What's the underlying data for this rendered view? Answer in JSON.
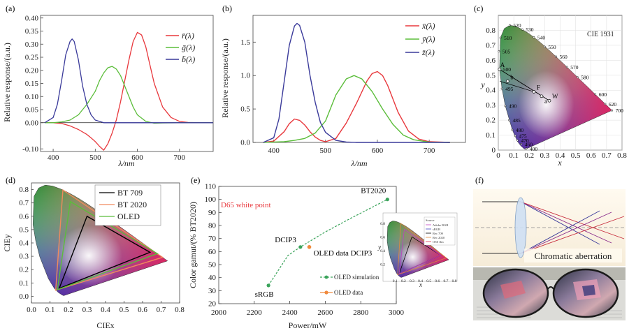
{
  "chart_data": [
    {
      "id": "a",
      "type": "line",
      "panel_label": "(a)",
      "xlabel": "λ/nm",
      "ylabel": "Relative response/(a.u.)",
      "xlim": [
        370,
        780
      ],
      "ylim": [
        -0.11,
        0.41
      ],
      "xticks": [
        "400",
        "500",
        "600",
        "700"
      ],
      "yticks": [
        "-0.10",
        "0.00",
        "0.05",
        "0.10",
        "0.15",
        "0.20",
        "0.25",
        "0.30",
        "0.35",
        "0.40"
      ],
      "legend": [
        "r̄(λ)",
        "ḡ(λ)",
        "b̄(λ)"
      ],
      "series": [
        {
          "name": "r̄(λ)",
          "color": "#e8383d",
          "x": [
            380,
            400,
            420,
            440,
            460,
            480,
            490,
            500,
            510,
            520,
            530,
            540,
            550,
            560,
            570,
            580,
            590,
            600,
            610,
            620,
            630,
            640,
            660,
            680,
            700,
            720,
            750,
            780
          ],
          "y": [
            0.0,
            0.0,
            -0.003,
            -0.012,
            -0.026,
            -0.045,
            -0.058,
            -0.072,
            -0.09,
            -0.105,
            -0.08,
            -0.04,
            0.01,
            0.08,
            0.16,
            0.24,
            0.31,
            0.345,
            0.335,
            0.29,
            0.22,
            0.15,
            0.06,
            0.02,
            0.005,
            0.001,
            0,
            0
          ]
        },
        {
          "name": "ḡ(λ)",
          "color": "#5bbd3a",
          "x": [
            380,
            400,
            420,
            440,
            460,
            480,
            500,
            510,
            520,
            530,
            540,
            550,
            560,
            570,
            580,
            590,
            600,
            620,
            640,
            660,
            700,
            780
          ],
          "y": [
            0,
            0,
            0.003,
            0.01,
            0.03,
            0.07,
            0.12,
            0.16,
            0.19,
            0.21,
            0.215,
            0.205,
            0.18,
            0.14,
            0.1,
            0.06,
            0.03,
            0.005,
            -0.002,
            -0.001,
            0,
            0
          ]
        },
        {
          "name": "b̄(λ)",
          "color": "#3a3a9a",
          "x": [
            380,
            400,
            410,
            420,
            430,
            440,
            445,
            450,
            460,
            470,
            480,
            490,
            500,
            520,
            540,
            560,
            600,
            780
          ],
          "y": [
            0,
            0.02,
            0.07,
            0.16,
            0.26,
            0.31,
            0.32,
            0.31,
            0.24,
            0.14,
            0.07,
            0.03,
            0.01,
            0,
            0,
            0,
            0,
            0
          ]
        }
      ]
    },
    {
      "id": "b",
      "type": "line",
      "panel_label": "(b)",
      "xlabel": "λ/nm",
      "ylabel": "Relative response/(a.u.)",
      "xlim": [
        360,
        770
      ],
      "ylim": [
        0,
        1.9
      ],
      "xticks": [
        "400",
        "500",
        "600",
        "700"
      ],
      "yticks": [
        "0.0",
        "0.5",
        "1.0",
        "1.5"
      ],
      "legend": [
        "x̄(λ)",
        "ȳ(λ)",
        "z̄(λ)"
      ],
      "series": [
        {
          "name": "x̄(λ)",
          "color": "#e8383d",
          "x": [
            380,
            400,
            420,
            430,
            440,
            450,
            460,
            470,
            480,
            490,
            500,
            520,
            540,
            560,
            580,
            590,
            600,
            610,
            620,
            640,
            660,
            680,
            700,
            740
          ],
          "y": [
            0,
            0.02,
            0.16,
            0.28,
            0.35,
            0.33,
            0.26,
            0.16,
            0.08,
            0.03,
            0.01,
            0.06,
            0.29,
            0.59,
            0.92,
            1.03,
            1.06,
            1.0,
            0.85,
            0.45,
            0.17,
            0.05,
            0.01,
            0
          ]
        },
        {
          "name": "ȳ(λ)",
          "color": "#5bbd3a",
          "x": [
            380,
            420,
            440,
            460,
            480,
            500,
            520,
            540,
            555,
            570,
            590,
            610,
            630,
            650,
            670,
            700,
            740
          ],
          "y": [
            0,
            0.01,
            0.03,
            0.06,
            0.14,
            0.32,
            0.71,
            0.95,
            1.0,
            0.95,
            0.76,
            0.5,
            0.27,
            0.11,
            0.04,
            0.004,
            0
          ]
        },
        {
          "name": "z̄(λ)",
          "color": "#3a3a9a",
          "x": [
            380,
            400,
            410,
            420,
            430,
            440,
            445,
            450,
            460,
            470,
            480,
            490,
            500,
            520,
            540,
            560,
            740
          ],
          "y": [
            0,
            0.07,
            0.35,
            0.9,
            1.45,
            1.74,
            1.78,
            1.75,
            1.5,
            1.0,
            0.6,
            0.3,
            0.15,
            0.03,
            0.005,
            0,
            0
          ]
        }
      ]
    },
    {
      "id": "c",
      "type": "scatter",
      "panel_label": "(c)",
      "title": "CIE 1931",
      "xlabel": "x",
      "ylabel": "y",
      "xlim": [
        0,
        0.8
      ],
      "ylim": [
        0,
        0.9
      ],
      "xticks": [
        "0",
        "0.1",
        "0.2",
        "0.3",
        "0.4",
        "0.5",
        "0.6",
        "0.7",
        "0.8"
      ],
      "yticks": [
        "0",
        "0.1",
        "0.2",
        "0.3",
        "0.4",
        "0.5",
        "0.6",
        "0.7",
        "0.8"
      ],
      "locus": [
        [
          0.1741,
          0.005
        ],
        [
          0.1738,
          0.0049
        ],
        [
          0.1666,
          0.0089
        ],
        [
          0.144,
          0.0297
        ],
        [
          0.1241,
          0.0578
        ],
        [
          0.0913,
          0.1327
        ],
        [
          0.0454,
          0.295
        ],
        [
          0.0235,
          0.4127
        ],
        [
          0.0082,
          0.5384
        ],
        [
          0.0139,
          0.7502
        ],
        [
          0.0389,
          0.812
        ],
        [
          0.0743,
          0.8338
        ],
        [
          0.1142,
          0.8262
        ],
        [
          0.1547,
          0.8059
        ],
        [
          0.1929,
          0.7816
        ],
        [
          0.2296,
          0.7543
        ],
        [
          0.2658,
          0.7243
        ],
        [
          0.3016,
          0.6923
        ],
        [
          0.3373,
          0.6589
        ],
        [
          0.3731,
          0.6245
        ],
        [
          0.4087,
          0.5896
        ],
        [
          0.4441,
          0.5547
        ],
        [
          0.4788,
          0.5202
        ],
        [
          0.5125,
          0.4866
        ],
        [
          0.5448,
          0.4544
        ],
        [
          0.5752,
          0.4242
        ],
        [
          0.6029,
          0.3965
        ],
        [
          0.627,
          0.3725
        ],
        [
          0.6482,
          0.3514
        ],
        [
          0.6658,
          0.334
        ],
        [
          0.6915,
          0.3083
        ],
        [
          0.7347,
          0.2653
        ]
      ],
      "wavelength_labels": [
        {
          "label": "400",
          "x": 0.18,
          "y": 0.01
        },
        {
          "label": "460",
          "x": 0.148,
          "y": 0.04
        },
        {
          "label": "470",
          "x": 0.124,
          "y": 0.065
        },
        {
          "label": "475",
          "x": 0.11,
          "y": 0.095
        },
        {
          "label": "480",
          "x": 0.09,
          "y": 0.135
        },
        {
          "label": "485",
          "x": 0.07,
          "y": 0.2
        },
        {
          "label": "490",
          "x": 0.045,
          "y": 0.295
        },
        {
          "label": "495",
          "x": 0.023,
          "y": 0.41
        },
        {
          "label": "500",
          "x": 0.008,
          "y": 0.54
        },
        {
          "label": "505",
          "x": 0.004,
          "y": 0.66
        },
        {
          "label": "510",
          "x": 0.014,
          "y": 0.75
        },
        {
          "label": "520",
          "x": 0.074,
          "y": 0.834
        },
        {
          "label": "530",
          "x": 0.155,
          "y": 0.806
        },
        {
          "label": "540",
          "x": 0.23,
          "y": 0.754
        },
        {
          "label": "550",
          "x": 0.3,
          "y": 0.69
        },
        {
          "label": "560",
          "x": 0.373,
          "y": 0.625
        },
        {
          "label": "570",
          "x": 0.444,
          "y": 0.555
        },
        {
          "label": "580",
          "x": 0.512,
          "y": 0.487
        },
        {
          "label": "600",
          "x": 0.627,
          "y": 0.373
        },
        {
          "label": "620",
          "x": 0.691,
          "y": 0.308
        },
        {
          "label": "700",
          "x": 0.735,
          "y": 0.265
        }
      ],
      "points": [
        {
          "label": "A",
          "x": 0.008,
          "y": 0.54
        },
        {
          "label": "b",
          "x": 0.06,
          "y": 0.46
        },
        {
          "label": "F",
          "x": 0.23,
          "y": 0.39
        },
        {
          "label": "a",
          "x": 0.28,
          "y": 0.36
        },
        {
          "label": "W",
          "x": 0.33,
          "y": 0.33
        }
      ]
    },
    {
      "id": "d",
      "type": "scatter",
      "panel_label": "(d)",
      "xlabel": "CIEx",
      "ylabel": "CIEy",
      "xlim": [
        0,
        0.8
      ],
      "ylim": [
        -0.05,
        0.85
      ],
      "xticks": [
        "0.0",
        "0.1",
        "0.2",
        "0.3",
        "0.4",
        "0.5",
        "0.6",
        "0.7",
        "0.8"
      ],
      "yticks": [
        "0.0",
        "0.1",
        "0.2",
        "0.3",
        "0.4",
        "0.5",
        "0.6",
        "0.7",
        "0.8"
      ],
      "series": [
        {
          "name": "BT 709",
          "color": "#000000",
          "points": [
            [
              0.64,
              0.33
            ],
            [
              0.3,
              0.6
            ],
            [
              0.15,
              0.06
            ]
          ]
        },
        {
          "name": "BT 2020",
          "color": "#f08a5d",
          "points": [
            [
              0.708,
              0.292
            ],
            [
              0.17,
              0.797
            ],
            [
              0.131,
              0.046
            ]
          ]
        },
        {
          "name": "OLED",
          "color": "#5bbd3a",
          "points": [
            [
              0.68,
              0.32
            ],
            [
              0.21,
              0.71
            ],
            [
              0.14,
              0.05
            ]
          ]
        }
      ]
    },
    {
      "id": "e",
      "type": "line",
      "panel_label": "(e)",
      "annotation": "D65 white point",
      "xlabel": "Power/mW",
      "ylabel": "Color gamut/(% BT2020)",
      "xlim": [
        2000,
        3000
      ],
      "ylim": [
        20,
        110
      ],
      "xticks": [
        "2000",
        "2200",
        "2400",
        "2600",
        "2800",
        "3000"
      ],
      "yticks": [
        "20",
        "30",
        "40",
        "50",
        "60",
        "70",
        "80",
        "90",
        "100",
        "110"
      ],
      "legend": [
        "OLED simulation",
        "OLED data"
      ],
      "series": [
        {
          "name": "OLED simulation",
          "color": "#3aa35a",
          "style": "dashed",
          "x": [
            2280,
            2390,
            2460,
            2490,
            2600,
            2750,
            2950
          ],
          "y": [
            34,
            57,
            63.5,
            66,
            75,
            86,
            100
          ],
          "labels": [
            "sRGB",
            "",
            "DCIP3",
            "",
            "",
            "",
            "BT2020"
          ]
        },
        {
          "name": "OLED data",
          "color": "#f08a3d",
          "x": [
            2510
          ],
          "y": [
            63.5
          ],
          "labels": [
            "OLED data DCIP3"
          ]
        }
      ],
      "inset": {
        "legend": [
          "Source",
          "Adobe RGB",
          "sRGB",
          "Rec 709",
          "Rec 2020",
          "OSS flm"
        ],
        "xlabel": "x",
        "ylabel": "y",
        "xticks": [
          "0.1",
          "0.2",
          "0.3",
          "0.4",
          "0.5",
          "0.6",
          "0.7",
          "0.8"
        ],
        "yticks": [
          "0.2",
          "0.4",
          "0.6",
          "0.8"
        ]
      }
    },
    {
      "id": "f",
      "type": "table",
      "panel_label": "(f)",
      "caption": "Chromatic aberration"
    }
  ]
}
